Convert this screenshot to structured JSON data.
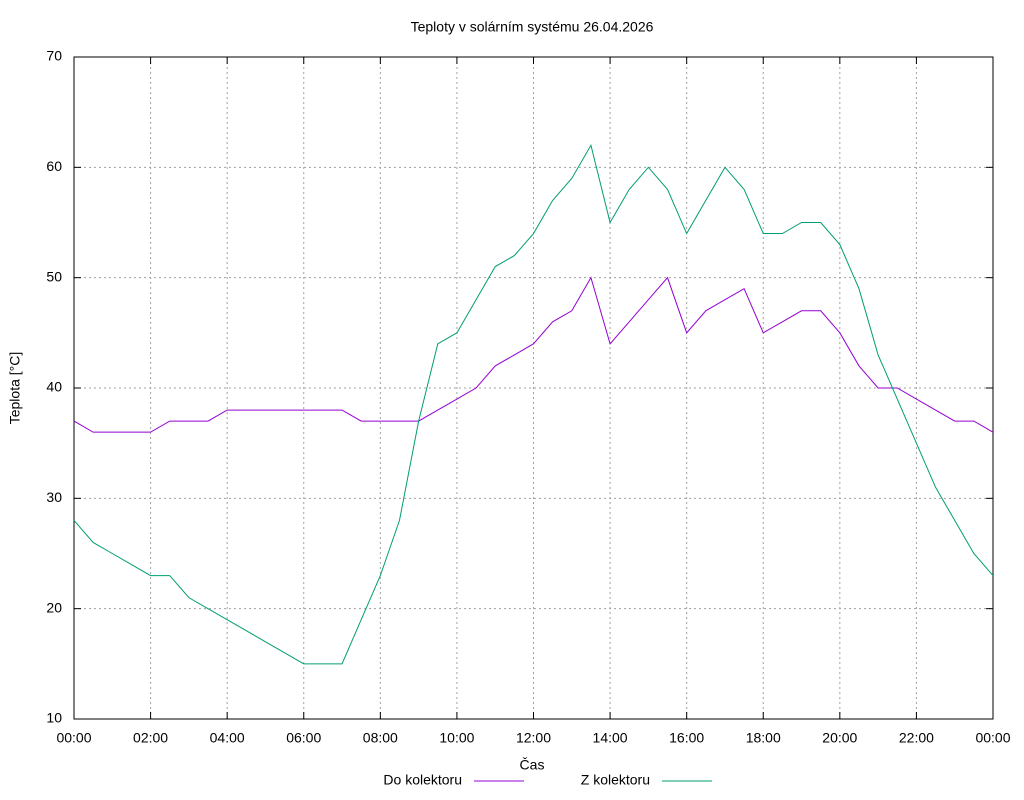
{
  "chart_data": {
    "type": "line",
    "title": "Teploty v solárním systému 26.04.2026",
    "xlabel": "Čas",
    "ylabel": "Teplota [°C]",
    "xlim": [
      0,
      24
    ],
    "ylim": [
      10,
      70
    ],
    "xticks": [
      {
        "value": 0,
        "label": "00:00"
      },
      {
        "value": 2,
        "label": "02:00"
      },
      {
        "value": 4,
        "label": "04:00"
      },
      {
        "value": 6,
        "label": "06:00"
      },
      {
        "value": 8,
        "label": "08:00"
      },
      {
        "value": 10,
        "label": "10:00"
      },
      {
        "value": 12,
        "label": "12:00"
      },
      {
        "value": 14,
        "label": "14:00"
      },
      {
        "value": 16,
        "label": "16:00"
      },
      {
        "value": 18,
        "label": "18:00"
      },
      {
        "value": 20,
        "label": "20:00"
      },
      {
        "value": 22,
        "label": "22:00"
      },
      {
        "value": 24,
        "label": "00:00"
      }
    ],
    "yticks": [
      10,
      20,
      30,
      40,
      50,
      60,
      70
    ],
    "grid": true,
    "legend": "bottom",
    "x": [
      0,
      0.5,
      1,
      1.5,
      2,
      2.5,
      3,
      3.5,
      4,
      4.5,
      5,
      5.5,
      6,
      6.5,
      7,
      7.5,
      8,
      8.5,
      9,
      9.5,
      10,
      10.5,
      11,
      11.5,
      12,
      12.5,
      13,
      13.5,
      14,
      14.5,
      15,
      15.5,
      16,
      16.5,
      17,
      17.5,
      18,
      18.5,
      19,
      19.5,
      20,
      20.5,
      21,
      21.5,
      22,
      22.5,
      23,
      23.5,
      24
    ],
    "series": [
      {
        "name": "Do kolektoru",
        "color": "#9400d3",
        "values": [
          37,
          36,
          36,
          36,
          36,
          37,
          37,
          37,
          38,
          38,
          38,
          38,
          38,
          38,
          38,
          37,
          37,
          37,
          37,
          38,
          39,
          40,
          42,
          43,
          44,
          46,
          47,
          50,
          44,
          46,
          48,
          50,
          45,
          47,
          48,
          49,
          45,
          46,
          47,
          47,
          45,
          42,
          40,
          40,
          39,
          38,
          37,
          37,
          36
        ]
      },
      {
        "name": "Z kolektoru",
        "color": "#009e73",
        "values": [
          28,
          26,
          25,
          24,
          23,
          23,
          21,
          20,
          19,
          18,
          17,
          16,
          15,
          15,
          15,
          19,
          23,
          28,
          37,
          44,
          45,
          48,
          51,
          52,
          54,
          57,
          59,
          62,
          55,
          58,
          60,
          58,
          54,
          57,
          60,
          58,
          54,
          54,
          55,
          55,
          53,
          49,
          43,
          39,
          35,
          31,
          28,
          25,
          23
        ]
      }
    ]
  }
}
